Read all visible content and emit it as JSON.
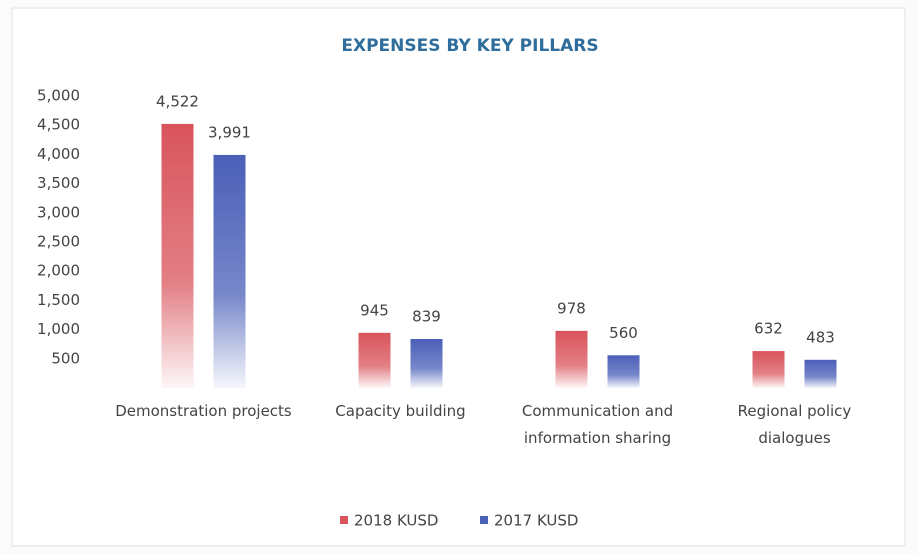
{
  "chart_data": {
    "type": "bar",
    "title": "EXPENSES BY KEY PILLARS",
    "categories": [
      "Demonstration projects",
      "Capacity building",
      "Communication and information sharing",
      "Regional policy dialogues"
    ],
    "series": [
      {
        "name": "2018 KUSD",
        "color": "#d9545c",
        "values": [
          4522,
          945,
          978,
          632
        ],
        "value_labels": [
          "4,522",
          "945",
          "978",
          "632"
        ]
      },
      {
        "name": "2017 KUSD",
        "color": "#4a5fb8",
        "values": [
          3991,
          839,
          560,
          483
        ],
        "value_labels": [
          "3,991",
          "839",
          "560",
          "483"
        ]
      }
    ],
    "ylim": [
      0,
      5000
    ],
    "yticks": [
      500,
      {
        "value": 1000,
        "label": "1,000"
      },
      {
        "value": 1500,
        "label": "1,500"
      },
      {
        "value": 2000,
        "label": "2,000"
      },
      {
        "value": 2500,
        "label": "2,500"
      },
      {
        "value": 3000,
        "label": "3,000"
      },
      {
        "value": 3500,
        "label": "3,500"
      },
      {
        "value": 4000,
        "label": "4,000"
      },
      {
        "value": 4500,
        "label": "4,500"
      },
      {
        "value": 5000,
        "label": "5,000"
      }
    ],
    "grid": false,
    "legend": "bottom"
  }
}
